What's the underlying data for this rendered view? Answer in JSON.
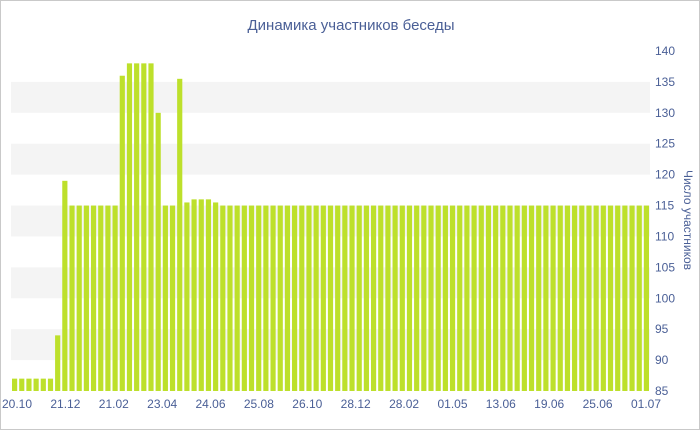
{
  "chart_data": {
    "type": "bar",
    "title": "Динамика участников беседы",
    "xlabel": "",
    "ylabel": "Число участников",
    "ylim": [
      85,
      140
    ],
    "yticks": [
      85,
      90,
      95,
      100,
      105,
      110,
      115,
      120,
      125,
      130,
      135,
      140
    ],
    "xtick_labels": [
      "20.10",
      "21.12",
      "21.02",
      "23.04",
      "24.06",
      "25.08",
      "26.10",
      "28.12",
      "28.02",
      "01.05",
      "13.06",
      "19.06",
      "25.06",
      "01.07"
    ],
    "y_axis_side": "right",
    "grid": "horizontal bands",
    "colors": {
      "bar": "#bde02b",
      "band": "#f4f4f4",
      "text": "#4a5f96"
    },
    "values": [
      87,
      87,
      87,
      87,
      87,
      87,
      94,
      119,
      115,
      115,
      115,
      115,
      115,
      115,
      115,
      136,
      138,
      138,
      138,
      138,
      130,
      115,
      115,
      135.5,
      115.5,
      116,
      116,
      116,
      115.5,
      115,
      115,
      115,
      115,
      115,
      115,
      115,
      115,
      115,
      115,
      115,
      115,
      115,
      115,
      115,
      115,
      115,
      115,
      115,
      115,
      115,
      115,
      115,
      115,
      115,
      115,
      115,
      115,
      115,
      115,
      115,
      115,
      115,
      115,
      115,
      115,
      115,
      115,
      115,
      115,
      115,
      115,
      115,
      115,
      115,
      115,
      115,
      115,
      115,
      115,
      115,
      115,
      115,
      115,
      115,
      115,
      115,
      115,
      115,
      115
    ]
  }
}
